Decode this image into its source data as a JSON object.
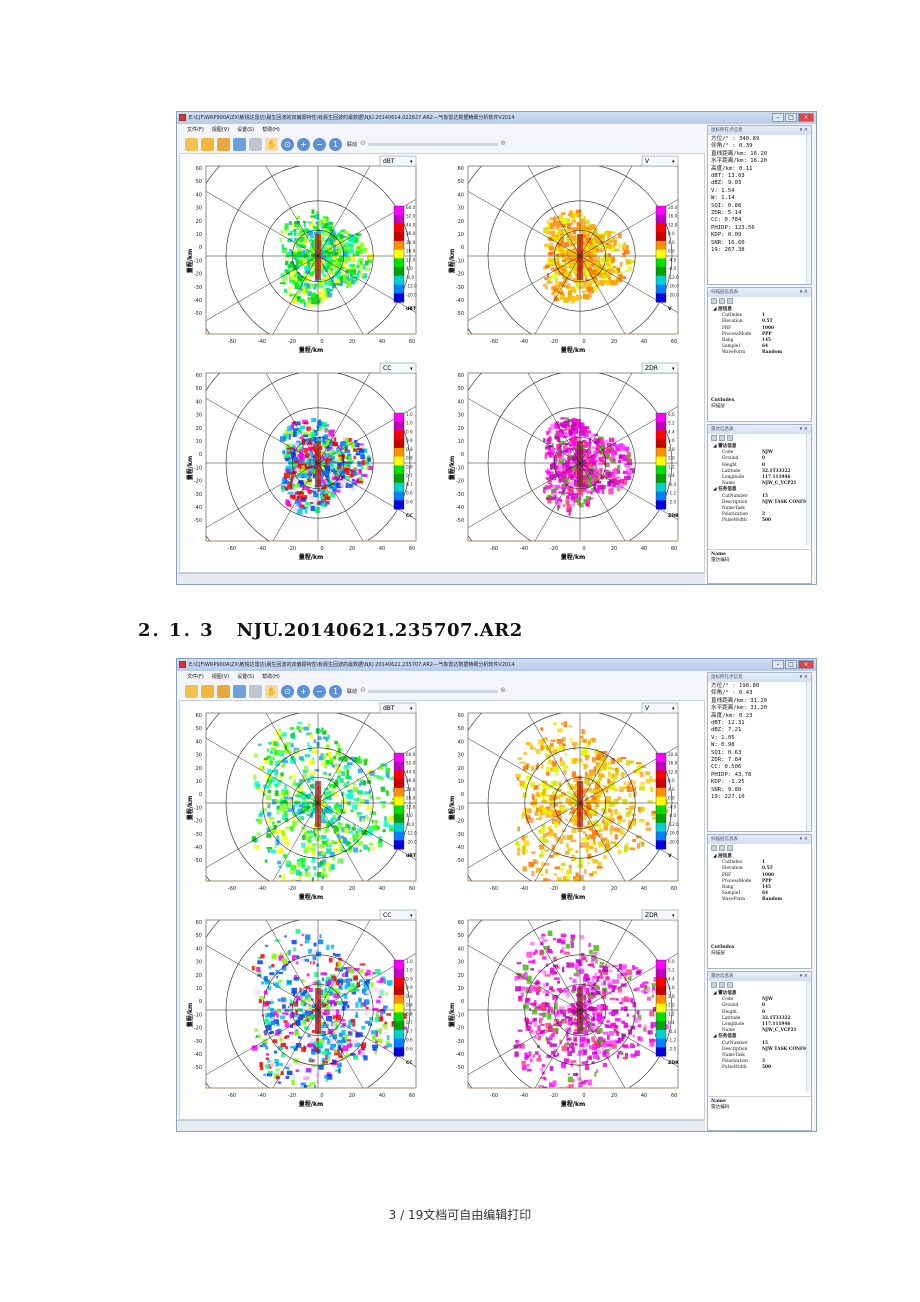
{
  "section": {
    "number": "2. 1. 3",
    "title": "NJU.20140621.235707.AR2"
  },
  "footer": {
    "page": "3",
    "sep": "/",
    "total": "19",
    "text": "文档可自由编辑打印"
  },
  "windows": [
    {
      "title": "E:\\CJF\\WRP900A\\ZX\\敏锐达雷达\\晨生回波的双偏振特性\\有晨生回波的最数据\\NJU.20140614.022627.AR2---气象雷达数据精细分析软件V2014",
      "menu": [
        "文件(F)",
        "视图(V)",
        "设置(S)",
        "帮助(H)"
      ],
      "toolbar_link": "联动",
      "plots": [
        {
          "var": "dBT",
          "unit": "dBT",
          "scale": [
            "60.0",
            "52.0",
            "44.0",
            "36.0",
            "28.0",
            "20.0",
            "12.0",
            "4.0",
            "-4.0",
            "-12.0",
            "-20.0"
          ]
        },
        {
          "var": "V",
          "unit": "V",
          "scale": [
            "20.0",
            "16.0",
            "12.0",
            "8.0",
            "4.0",
            "0.0",
            "-4.0",
            "-8.0",
            "-12.0",
            "-16.0",
            "-20.0"
          ]
        },
        {
          "var": "CC",
          "unit": "CC",
          "scale": [
            "1.0",
            "1.0",
            "0.9",
            "0.9",
            "0.8",
            "0.8",
            "0.8",
            "0.7",
            "0.7",
            "0.6",
            "0.6"
          ]
        },
        {
          "var": "ZDR",
          "unit": "ZDR",
          "scale": [
            "6.0",
            "5.2",
            "4.4",
            "3.6",
            "2.8",
            "2.0",
            "1.2",
            "0.4",
            "-0.4",
            "-1.2",
            "-2.0"
          ]
        }
      ],
      "axis": {
        "ylabel": "量程/km",
        "xlabel": "量程/km",
        "yticks": [
          "60",
          "50",
          "40",
          "30",
          "20",
          "10",
          "0",
          "-10",
          "-20",
          "-30",
          "-40",
          "-50"
        ],
        "xticks": [
          "-60",
          "-40",
          "-20",
          "0",
          "20",
          "40",
          "60"
        ]
      },
      "point_panel": {
        "title": "鼠标所在点信息",
        "lines": [
          "方位/° : 340.89",
          "仰角/° : 0.39",
          "直线距离/km: 16.20",
          "水平距离/km: 16.20",
          "高度/km: 0.11",
          "dBT: 13.03",
          "dBZ: 9.03",
          "V: 1.54",
          "W: 1.14",
          "SQI: 0.86",
          "ZDR: 5.14",
          "CC: 0.784",
          "PHIDP: 123.56",
          "KDP: 0.09",
          "SNR: 16.60",
          "19: 267.38"
        ]
      },
      "scan_panel": {
        "title": "扫描层信息表",
        "group": "层信息",
        "rows": [
          [
            "CutIndex",
            "1"
          ],
          [
            "Elevation",
            "0.5T"
          ],
          [
            "PRF",
            "1000"
          ],
          [
            "ProcessMode",
            "PPP"
          ],
          [
            "Rang",
            "145"
          ],
          [
            "Sample1",
            "64"
          ],
          [
            "WaveForm",
            "Random"
          ]
        ],
        "note_key": "CutIndex",
        "note_val": "扫描层"
      },
      "radar_panel": {
        "title": "雷达信息表",
        "group1": "雷达信息",
        "rows1": [
          [
            "Code",
            "NJW"
          ],
          [
            "Ground",
            "0"
          ],
          [
            "Height",
            "0"
          ],
          [
            "Latitude",
            "32.1T33322"
          ],
          [
            "Longitude",
            "117.111946"
          ],
          [
            "Name",
            "NJW_C_VCP21"
          ]
        ],
        "group2": "任务信息",
        "rows2": [
          [
            "CutNumber",
            "15"
          ],
          [
            "Description",
            "NJW TASK CONFIG"
          ],
          [
            "NameTask",
            ""
          ],
          [
            "Polarization",
            "3"
          ],
          [
            "PulseWidth",
            "500"
          ]
        ],
        "note_key": "Name",
        "note_val": "雷达编码"
      }
    },
    {
      "title": "E:\\CJF\\WRP900A\\ZX\\敏锐达雷达\\晨生回波的双偏振特性\\有晨生回波的最数据\\NJU.20140621.235707.AR2---气象雷达数据精细分析软件V2014",
      "menu": [
        "文件(F)",
        "视图(V)",
        "设置(S)",
        "帮助(H)"
      ],
      "toolbar_link": "联动",
      "plots": [
        {
          "var": "dBT",
          "unit": "dBT",
          "scale": [
            "60.0",
            "52.0",
            "44.0",
            "36.0",
            "28.0",
            "20.0",
            "12.0",
            "4.0",
            "-4.0",
            "-12.0",
            "-20.0"
          ]
        },
        {
          "var": "V",
          "unit": "V",
          "scale": [
            "20.0",
            "16.0",
            "12.0",
            "8.0",
            "4.0",
            "0.0",
            "-4.0",
            "-8.0",
            "-12.0",
            "-16.0",
            "-20.0"
          ]
        },
        {
          "var": "CC",
          "unit": "CC",
          "scale": [
            "1.0",
            "1.0",
            "0.9",
            "0.9",
            "0.8",
            "0.8",
            "0.8",
            "0.7",
            "0.7",
            "0.6",
            "0.6"
          ]
        },
        {
          "var": "ZDR",
          "unit": "ZDR",
          "scale": [
            "6.0",
            "5.2",
            "4.4",
            "3.6",
            "2.8",
            "2.0",
            "1.2",
            "0.4",
            "-0.4",
            "-1.2",
            "-2.0"
          ]
        }
      ],
      "axis": {
        "ylabel": "量程/km",
        "xlabel": "量程/km",
        "yticks": [
          "60",
          "50",
          "40",
          "30",
          "20",
          "10",
          "0",
          "-10",
          "-20",
          "-30",
          "-40",
          "-50"
        ],
        "xticks": [
          "-60",
          "-40",
          "-20",
          "0",
          "20",
          "40",
          "60"
        ]
      },
      "point_panel": {
        "title": "鼠标所在点信息",
        "lines": [
          "方位/° : 198.80",
          "仰角/° : 0.43",
          "直线距离/km: 31.20",
          "水平距离/km: 31.20",
          "高度/km: 0.23",
          "dBT: 12.31",
          "dBZ: 7.21",
          "V: 1.05",
          "W: 0.98",
          "SQI: 0.63",
          "ZDR: 7.84",
          "CC: 0.506",
          "PHIDP: 43.78",
          "KDP: -1.25",
          "SNR: 9.88",
          "19: 227.10"
        ]
      },
      "scan_panel": {
        "title": "扫描层信息表",
        "group": "层信息",
        "rows": [
          [
            "CutIndex",
            "1"
          ],
          [
            "Elevation",
            "0.5T"
          ],
          [
            "PRF",
            "1000"
          ],
          [
            "ProcessMode",
            "PPP"
          ],
          [
            "Rang",
            "145"
          ],
          [
            "Sample1",
            "64"
          ],
          [
            "WaveForm",
            "Random"
          ]
        ],
        "note_key": "CutIndex",
        "note_val": "扫描层"
      },
      "radar_panel": {
        "title": "雷达信息表",
        "group1": "雷达信息",
        "rows1": [
          [
            "Code",
            "NJW"
          ],
          [
            "Ground",
            "0"
          ],
          [
            "Height",
            "0"
          ],
          [
            "Latitude",
            "32.1T33322"
          ],
          [
            "Longitude",
            "117.111946"
          ],
          [
            "Name",
            "NJW_C_VCP21"
          ]
        ],
        "group2": "任务信息",
        "rows2": [
          [
            "CutNumber",
            "15"
          ],
          [
            "Description",
            "NJW TASK CONFIG"
          ],
          [
            "NameTask",
            ""
          ],
          [
            "Polarization",
            "3"
          ],
          [
            "PulseWidth",
            "500"
          ]
        ],
        "note_key": "Name",
        "note_val": "雷达编码"
      }
    }
  ],
  "colors": {
    "dbt": [
      "#ff00ff",
      "#c000c0",
      "#ff0000",
      "#c80000",
      "#ff9000",
      "#ffff00",
      "#00e000",
      "#00a000",
      "#00d0d0",
      "#0080ff",
      "#0000e0"
    ],
    "v": [
      "#ff00ff",
      "#c000c0",
      "#ff0000",
      "#c80000",
      "#ff9000",
      "#ffff00",
      "#00e000",
      "#00a000",
      "#00d0d0",
      "#0080ff",
      "#0000e0"
    ],
    "cc": [
      "#ff00ff",
      "#c000c0",
      "#ff0000",
      "#c80000",
      "#ff9000",
      "#ffff00",
      "#00e000",
      "#00a000",
      "#00d0d0",
      "#0080ff",
      "#0000e0"
    ],
    "zdr": [
      "#ff00ff",
      "#c000c0",
      "#ff0000",
      "#c80000",
      "#ff9000",
      "#ffff00",
      "#00e000",
      "#00a000",
      "#00d0d0",
      "#0080ff",
      "#0000e0"
    ]
  }
}
